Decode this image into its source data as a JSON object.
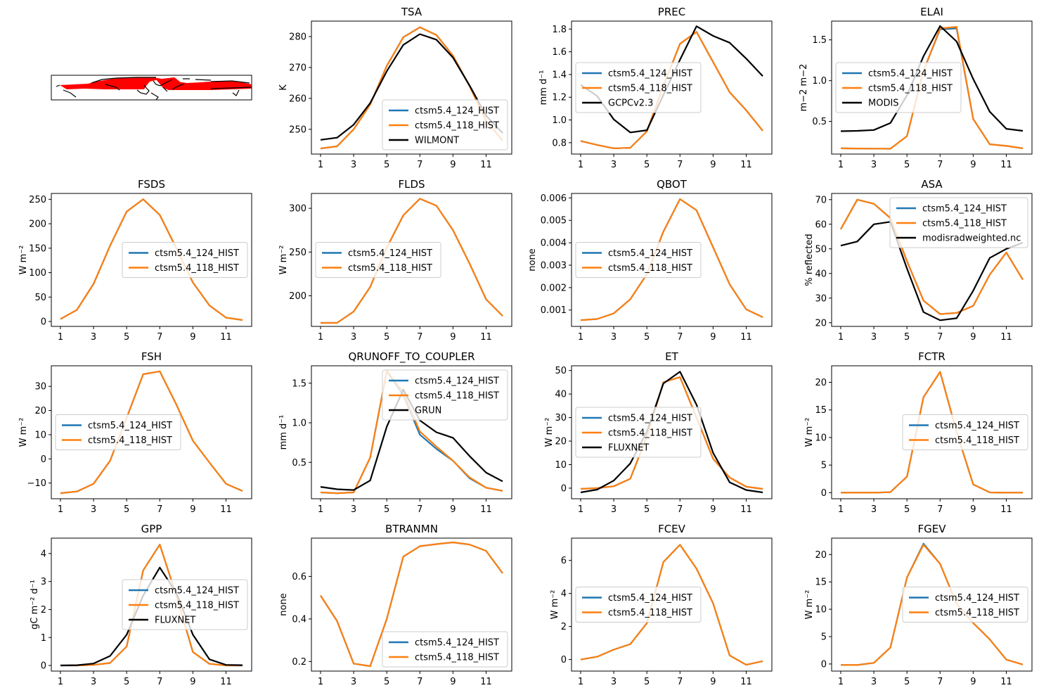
{
  "colors": {
    "ctsm5.4_124_HIST": "#1f77b4",
    "ctsm5.4_118_HIST": "#ff7f0e",
    "obs": "#000000",
    "map_region": "#ff0000"
  },
  "map": {
    "description": "region map (red shaded northern high-latitude land band)"
  },
  "chart_data": [
    {
      "type": "line",
      "title": "TSA",
      "ylabel": "K",
      "x": [
        1,
        2,
        3,
        4,
        5,
        6,
        7,
        8,
        9,
        10,
        11,
        12
      ],
      "xticks": [
        1,
        3,
        5,
        7,
        9,
        11
      ],
      "yticks": [
        250,
        260,
        270,
        280
      ],
      "ylim": [
        242,
        285
      ],
      "legend": "lower-right",
      "series": [
        {
          "name": "ctsm5.4_124_HIST",
          "values": [
            243.8,
            244.5,
            250,
            258,
            270.5,
            279.8,
            283,
            280.5,
            273.8,
            264,
            252.8,
            246.3
          ]
        },
        {
          "name": "ctsm5.4_118_HIST",
          "values": [
            243.8,
            244.5,
            250,
            258,
            270.5,
            279.8,
            283,
            280.5,
            273.8,
            264,
            252.8,
            246.3
          ]
        },
        {
          "name": "WILMONT",
          "values": [
            246.6,
            247.3,
            251.5,
            258.5,
            268.8,
            277.3,
            280.8,
            279,
            273.2,
            264.2,
            254.4,
            248.8
          ]
        }
      ]
    },
    {
      "type": "line",
      "title": "PREC",
      "ylabel": "mm d⁻¹",
      "x": [
        1,
        2,
        3,
        4,
        5,
        6,
        7,
        8,
        9,
        10,
        11,
        12
      ],
      "xticks": [
        1,
        3,
        5,
        7,
        9,
        11
      ],
      "yticks": [
        0.8,
        1.0,
        1.2,
        1.4,
        1.6,
        1.8
      ],
      "ylim": [
        0.7,
        1.87
      ],
      "legend": "center-left",
      "series": [
        {
          "name": "ctsm5.4_124_HIST",
          "values": [
            0.815,
            0.78,
            0.75,
            0.755,
            0.9,
            1.3,
            1.67,
            1.775,
            1.51,
            1.245,
            1.085,
            0.905
          ]
        },
        {
          "name": "ctsm5.4_118_HIST",
          "values": [
            0.815,
            0.78,
            0.75,
            0.755,
            0.9,
            1.3,
            1.67,
            1.775,
            1.51,
            1.245,
            1.085,
            0.905
          ]
        },
        {
          "name": "GCPCv2.3",
          "values": [
            1.31,
            1.21,
            1.005,
            0.89,
            0.91,
            1.22,
            1.53,
            1.825,
            1.74,
            1.68,
            1.54,
            1.385
          ]
        }
      ]
    },
    {
      "type": "line",
      "title": "ELAI",
      "ylabel": "m−2 m−2",
      "x": [
        1,
        2,
        3,
        4,
        5,
        6,
        7,
        8,
        9,
        10,
        11,
        12
      ],
      "xticks": [
        1,
        3,
        5,
        7,
        9,
        11
      ],
      "yticks": [
        0.5,
        1.0,
        1.5
      ],
      "ylim": [
        0.1,
        1.73
      ],
      "legend": "center-left",
      "series": [
        {
          "name": "ctsm5.4_124_HIST",
          "values": [
            0.17,
            0.168,
            0.166,
            0.165,
            0.32,
            1.12,
            1.63,
            1.64,
            0.53,
            0.22,
            0.2,
            0.17
          ]
        },
        {
          "name": "ctsm5.4_118_HIST",
          "values": [
            0.17,
            0.168,
            0.166,
            0.165,
            0.32,
            1.12,
            1.64,
            1.66,
            0.53,
            0.22,
            0.2,
            0.17
          ]
        },
        {
          "name": "MODIS",
          "values": [
            0.38,
            0.385,
            0.395,
            0.48,
            0.82,
            1.3,
            1.67,
            1.48,
            1.02,
            0.62,
            0.41,
            0.385
          ]
        }
      ]
    },
    {
      "type": "line",
      "title": "FSDS",
      "ylabel": "W m⁻²",
      "x": [
        1,
        2,
        3,
        4,
        5,
        6,
        7,
        8,
        9,
        10,
        11,
        12
      ],
      "xticks": [
        1,
        3,
        5,
        7,
        9,
        11
      ],
      "yticks": [
        0,
        50,
        100,
        150,
        200,
        250
      ],
      "ylim": [
        -10,
        262
      ],
      "legend": "center-right",
      "series": [
        {
          "name": "ctsm5.4_124_HIST",
          "values": [
            5,
            24,
            77,
            155,
            225,
            250,
            218,
            150,
            80,
            33,
            8,
            3
          ]
        },
        {
          "name": "ctsm5.4_118_HIST",
          "values": [
            5,
            24,
            77,
            155,
            225,
            250,
            218,
            150,
            80,
            33,
            8,
            3
          ]
        }
      ]
    },
    {
      "type": "line",
      "title": "FLDS",
      "ylabel": "W m⁻²",
      "x": [
        1,
        2,
        3,
        4,
        5,
        6,
        7,
        8,
        9,
        10,
        11,
        12
      ],
      "xticks": [
        1,
        3,
        5,
        7,
        9,
        11
      ],
      "yticks": [
        200,
        250,
        300
      ],
      "ylim": [
        165,
        317
      ],
      "legend": "center-left",
      "series": [
        {
          "name": "ctsm5.4_124_HIST",
          "values": [
            169,
            169,
            182,
            210,
            255,
            292,
            311,
            303,
            275,
            237,
            196,
            177
          ]
        },
        {
          "name": "ctsm5.4_118_HIST",
          "values": [
            169,
            169,
            182,
            210,
            255,
            292,
            311,
            303,
            275,
            237,
            196,
            177
          ]
        }
      ]
    },
    {
      "type": "line",
      "title": "QBOT",
      "ylabel": "none",
      "x": [
        1,
        2,
        3,
        4,
        5,
        6,
        7,
        8,
        9,
        10,
        11,
        12
      ],
      "xticks": [
        1,
        3,
        5,
        7,
        9,
        11
      ],
      "yticks": [
        0.001,
        0.002,
        0.003,
        0.004,
        0.005,
        0.006
      ],
      "ylim": [
        0.00027,
        0.0062
      ],
      "legend": "center-left",
      "series": [
        {
          "name": "ctsm5.4_124_HIST",
          "values": [
            0.00055,
            0.0006,
            0.00085,
            0.00148,
            0.0026,
            0.0045,
            0.00595,
            0.00545,
            0.0038,
            0.00215,
            0.00103,
            0.00068
          ]
        },
        {
          "name": "ctsm5.4_118_HIST",
          "values": [
            0.00055,
            0.0006,
            0.00085,
            0.00148,
            0.0026,
            0.0045,
            0.00595,
            0.00545,
            0.0038,
            0.00215,
            0.00103,
            0.00068
          ]
        }
      ]
    },
    {
      "type": "line",
      "title": "ASA",
      "ylabel": "% reflected",
      "x": [
        1,
        2,
        3,
        4,
        5,
        6,
        7,
        8,
        9,
        10,
        11,
        12
      ],
      "xticks": [
        1,
        3,
        5,
        7,
        9,
        11
      ],
      "yticks": [
        20,
        30,
        40,
        50,
        60,
        70
      ],
      "ylim": [
        18.5,
        72.5
      ],
      "legend": "upper-right",
      "series": [
        {
          "name": "ctsm5.4_124_HIST",
          "values": [
            58,
            70,
            68.3,
            62.5,
            45,
            29,
            23.5,
            24,
            26.8,
            39.5,
            48.5,
            37.5
          ]
        },
        {
          "name": "ctsm5.4_118_HIST",
          "values": [
            58,
            70,
            68.3,
            62.5,
            45,
            29,
            23.5,
            24,
            26.8,
            39.5,
            48.5,
            37.5
          ]
        },
        {
          "name": "modisradweighted.nc",
          "values": [
            51.3,
            53,
            60,
            61,
            42,
            24.3,
            21,
            21.8,
            33,
            46.3,
            50,
            52.5
          ]
        }
      ]
    },
    {
      "type": "line",
      "title": "FSH",
      "ylabel": "W m⁻²",
      "x": [
        1,
        2,
        3,
        4,
        5,
        6,
        7,
        8,
        9,
        10,
        11,
        12
      ],
      "xticks": [
        1,
        3,
        5,
        7,
        9,
        11
      ],
      "yticks": [
        -10,
        0,
        10,
        20,
        30
      ],
      "ylim": [
        -16.5,
        38.5
      ],
      "legend": "center-left",
      "series": [
        {
          "name": "ctsm5.4_124_HIST",
          "values": [
            -14.2,
            -13.5,
            -10.3,
            -0.8,
            17,
            35,
            36.2,
            22.5,
            7.5,
            -1.5,
            -10.3,
            -13.3
          ]
        },
        {
          "name": "ctsm5.4_118_HIST",
          "values": [
            -14.2,
            -13.5,
            -10.3,
            -0.8,
            17,
            35,
            36.2,
            22.5,
            7.5,
            -1.5,
            -10.3,
            -13.3
          ]
        }
      ]
    },
    {
      "type": "line",
      "title": "QRUNOFF_TO_COUPLER",
      "ylabel": "mm d⁻¹",
      "x": [
        1,
        2,
        3,
        4,
        5,
        6,
        7,
        8,
        9,
        10,
        11,
        12
      ],
      "xticks": [
        1,
        3,
        5,
        7,
        9,
        11
      ],
      "yticks": [
        0.5,
        1.0,
        1.5
      ],
      "ylim": [
        0.04,
        1.72
      ],
      "legend": "upper-right",
      "series": [
        {
          "name": "ctsm5.4_124_HIST",
          "values": [
            0.12,
            0.11,
            0.12,
            0.56,
            1.65,
            1.35,
            0.85,
            0.67,
            0.52,
            0.3,
            0.18,
            0.14
          ]
        },
        {
          "name": "ctsm5.4_118_HIST",
          "values": [
            0.12,
            0.11,
            0.12,
            0.56,
            1.66,
            1.38,
            0.89,
            0.7,
            0.52,
            0.31,
            0.18,
            0.14
          ]
        },
        {
          "name": "GRUN",
          "values": [
            0.19,
            0.16,
            0.15,
            0.27,
            0.95,
            1.42,
            1.03,
            0.88,
            0.81,
            0.58,
            0.37,
            0.26
          ]
        }
      ]
    },
    {
      "type": "line",
      "title": "ET",
      "ylabel": "W m⁻²",
      "x": [
        1,
        2,
        3,
        4,
        5,
        6,
        7,
        8,
        9,
        10,
        11,
        12
      ],
      "xticks": [
        1,
        3,
        5,
        7,
        9,
        11
      ],
      "yticks": [
        0,
        10,
        20,
        30,
        40,
        50
      ],
      "ylim": [
        -4.5,
        52
      ],
      "legend": "center-left",
      "series": [
        {
          "name": "ctsm5.4_124_HIST",
          "values": [
            -0.3,
            0,
            0.8,
            4,
            22,
            45,
            47.2,
            30,
            12.5,
            4.5,
            0.6,
            -0.3
          ]
        },
        {
          "name": "ctsm5.4_118_HIST",
          "values": [
            -0.3,
            0,
            0.8,
            4,
            22,
            45,
            47.2,
            30,
            12.5,
            4.5,
            0.6,
            -0.3
          ]
        },
        {
          "name": "FLUXNET",
          "values": [
            -1.8,
            -0.6,
            3.2,
            10.5,
            24,
            44.5,
            49.5,
            35.5,
            15,
            2.5,
            -0.8,
            -1.8
          ]
        }
      ]
    },
    {
      "type": "line",
      "title": "FCTR",
      "ylabel": "W m⁻²",
      "x": [
        1,
        2,
        3,
        4,
        5,
        6,
        7,
        8,
        9,
        10,
        11,
        12
      ],
      "xticks": [
        1,
        3,
        5,
        7,
        9,
        11
      ],
      "yticks": [
        0,
        5,
        10,
        15,
        20
      ],
      "ylim": [
        -1.1,
        23
      ],
      " legend": "center-right",
      "legend": "center-right",
      "series": [
        {
          "name": "ctsm5.4_124_HIST",
          "values": [
            0,
            0,
            0,
            0.1,
            2.9,
            17.3,
            21.9,
            11,
            1.5,
            0.05,
            0,
            0
          ]
        },
        {
          "name": "ctsm5.4_118_HIST",
          "values": [
            0,
            0,
            0,
            0.1,
            2.9,
            17.3,
            21.9,
            11,
            1.5,
            0.05,
            0,
            0
          ]
        }
      ]
    },
    {
      "type": "line",
      "title": "GPP",
      "ylabel": "gC m⁻² d⁻¹",
      "x": [
        1,
        2,
        3,
        4,
        5,
        6,
        7,
        8,
        9,
        10,
        11,
        12
      ],
      "xticks": [
        1,
        3,
        5,
        7,
        9,
        11
      ],
      "yticks": [
        0,
        1,
        2,
        3,
        4
      ],
      "ylim": [
        -0.2,
        4.55
      ],
      "legend": "center-right",
      "series": [
        {
          "name": "ctsm5.4_124_HIST",
          "values": [
            0,
            0,
            0.02,
            0.09,
            0.68,
            3.4,
            4.32,
            2.5,
            0.48,
            0.06,
            0,
            0
          ]
        },
        {
          "name": "ctsm5.4_118_HIST",
          "values": [
            0,
            0,
            0.02,
            0.09,
            0.68,
            3.4,
            4.32,
            2.5,
            0.48,
            0.06,
            0,
            0
          ]
        },
        {
          "name": "FLUXNET",
          "values": [
            0,
            0.01,
            0.07,
            0.34,
            1.1,
            2.5,
            3.5,
            2.6,
            1.1,
            0.22,
            0.02,
            0.01
          ]
        }
      ]
    },
    {
      "type": "line",
      "title": "BTRANMN",
      "ylabel": "none",
      "x": [
        1,
        2,
        3,
        4,
        5,
        6,
        7,
        8,
        9,
        10,
        11,
        12
      ],
      "xticks": [
        1,
        3,
        5,
        7,
        9,
        11
      ],
      "yticks": [
        0.2,
        0.4,
        0.6
      ],
      "ylim": [
        0.155,
        0.78
      ],
      "legend": "lower-right",
      "series": [
        {
          "name": "ctsm5.4_124_HIST",
          "values": [
            0.51,
            0.39,
            0.19,
            0.178,
            0.4,
            0.693,
            0.742,
            0.752,
            0.76,
            0.75,
            0.72,
            0.615
          ]
        },
        {
          "name": "ctsm5.4_118_HIST",
          "values": [
            0.51,
            0.39,
            0.19,
            0.178,
            0.4,
            0.693,
            0.742,
            0.752,
            0.76,
            0.75,
            0.72,
            0.615
          ]
        }
      ]
    },
    {
      "type": "line",
      "title": "FCEV",
      "ylabel": "W m⁻²",
      "x": [
        1,
        2,
        3,
        4,
        5,
        6,
        7,
        8,
        9,
        10,
        11,
        12
      ],
      "xticks": [
        1,
        3,
        5,
        7,
        9,
        11
      ],
      "yticks": [
        0,
        2,
        4,
        6
      ],
      "ylim": [
        -0.7,
        7.35
      ],
      "legend": "center-left",
      "series": [
        {
          "name": "ctsm5.4_124_HIST",
          "values": [
            0,
            0.17,
            0.6,
            0.93,
            2.2,
            5.9,
            6.95,
            5.5,
            3.4,
            0.25,
            -0.32,
            -0.1
          ]
        },
        {
          "name": "ctsm5.4_118_HIST",
          "values": [
            0,
            0.17,
            0.6,
            0.93,
            2.2,
            5.9,
            6.95,
            5.5,
            3.4,
            0.25,
            -0.32,
            -0.1
          ]
        }
      ]
    },
    {
      "type": "line",
      "title": "FGEV",
      "ylabel": "W m⁻²",
      "x": [
        1,
        2,
        3,
        4,
        5,
        6,
        7,
        8,
        9,
        10,
        11,
        12
      ],
      "xticks": [
        1,
        3,
        5,
        7,
        9,
        11
      ],
      "yticks": [
        0,
        5,
        10,
        15,
        20
      ],
      "ylim": [
        -1.3,
        23
      ],
      "legend": "center-right",
      "series": [
        {
          "name": "ctsm5.4_124_HIST",
          "values": [
            -0.2,
            -0.2,
            0.2,
            3,
            15.8,
            22,
            18.3,
            11,
            7.5,
            4.5,
            0.8,
            -0.1
          ]
        },
        {
          "name": "ctsm5.4_118_HIST",
          "values": [
            -0.2,
            -0.2,
            0.2,
            3,
            15.8,
            21.8,
            18.3,
            11,
            7.5,
            4.5,
            0.8,
            -0.1
          ]
        }
      ]
    }
  ]
}
